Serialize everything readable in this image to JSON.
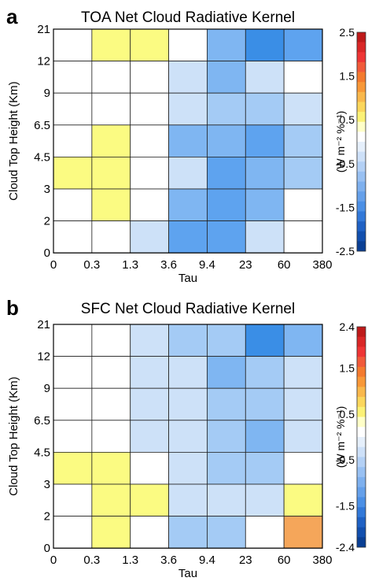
{
  "chart_data": [
    {
      "panel_letter": "a",
      "type": "heatmap",
      "title": "TOA Net Cloud Radiative Kernel",
      "xlabel": "Tau",
      "ylabel": "Cloud Top Height (Km)",
      "x_tick_labels": [
        "0",
        "0.3",
        "1.3",
        "3.6",
        "9.4",
        "23",
        "60",
        "380"
      ],
      "y_tick_labels": [
        "0",
        "2",
        "3",
        "4.5",
        "6.5",
        "9",
        "12",
        "21"
      ],
      "grid": true,
      "colorbar": {
        "label": "(W m⁻² %⁻¹)",
        "range": [
          -2.5,
          2.5
        ],
        "tick_labels": [
          "2.5",
          "1.5",
          "0.5",
          "-0.5",
          "-1.5",
          "-2.5"
        ],
        "tick_values": [
          2.5,
          1.5,
          0.5,
          -0.5,
          -1.5,
          -2.5
        ]
      },
      "row_order": "top-to-bottom (12-21 km first, 0-2 km last)",
      "values": [
        [
          0.0,
          0.3,
          0.3,
          0.0,
          -1.3,
          -1.8,
          -1.5
        ],
        [
          0.0,
          0.0,
          0.0,
          -0.7,
          -1.3,
          -0.7,
          0.0
        ],
        [
          0.0,
          0.0,
          0.0,
          -0.7,
          -0.9,
          -0.9,
          -0.7
        ],
        [
          0.0,
          0.3,
          0.0,
          -1.3,
          -1.3,
          -1.6,
          -0.9
        ],
        [
          0.3,
          0.3,
          0.0,
          -0.7,
          -1.6,
          -1.3,
          -0.9
        ],
        [
          0.0,
          0.3,
          0.0,
          -1.3,
          -1.6,
          -1.3,
          0.0
        ],
        [
          0.0,
          0.0,
          -0.7,
          -1.6,
          -1.6,
          -0.7,
          0.0
        ]
      ]
    },
    {
      "panel_letter": "b",
      "type": "heatmap",
      "title": "SFC Net Cloud Radiative Kernel",
      "xlabel": "Tau",
      "ylabel": "Cloud Top Height (Km)",
      "x_tick_labels": [
        "0",
        "0.3",
        "1.3",
        "3.6",
        "9.4",
        "23",
        "60",
        "380"
      ],
      "y_tick_labels": [
        "0",
        "2",
        "3",
        "4.5",
        "6.5",
        "9",
        "12",
        "21"
      ],
      "grid": true,
      "colorbar": {
        "label": "(W m⁻² %⁻¹)",
        "range": [
          -2.4,
          2.4
        ],
        "tick_labels": [
          "2.4",
          "1.5",
          "0.5",
          "-0.5",
          "-1.5",
          "-2.4"
        ],
        "tick_values": [
          2.4,
          1.5,
          0.5,
          -0.5,
          -1.5,
          -2.4
        ]
      },
      "row_order": "top-to-bottom (12-21 km first, 0-2 km last)",
      "values": [
        [
          0.0,
          0.0,
          -0.5,
          -0.9,
          -1.1,
          -2.0,
          -1.4
        ],
        [
          0.0,
          0.0,
          -0.5,
          -0.7,
          -1.4,
          -0.9,
          -0.5
        ],
        [
          0.0,
          0.0,
          -0.5,
          -0.5,
          -0.9,
          -0.9,
          -0.5
        ],
        [
          0.0,
          0.0,
          -0.5,
          -0.7,
          -1.1,
          -1.4,
          -0.7
        ],
        [
          0.3,
          0.3,
          0.0,
          -0.5,
          -1.1,
          -0.9,
          0.0
        ],
        [
          0.0,
          0.3,
          0.3,
          -0.5,
          -0.5,
          -0.5,
          0.3
        ],
        [
          0.0,
          0.3,
          0.0,
          -0.9,
          -0.9,
          0.0,
          0.9
        ]
      ]
    }
  ]
}
